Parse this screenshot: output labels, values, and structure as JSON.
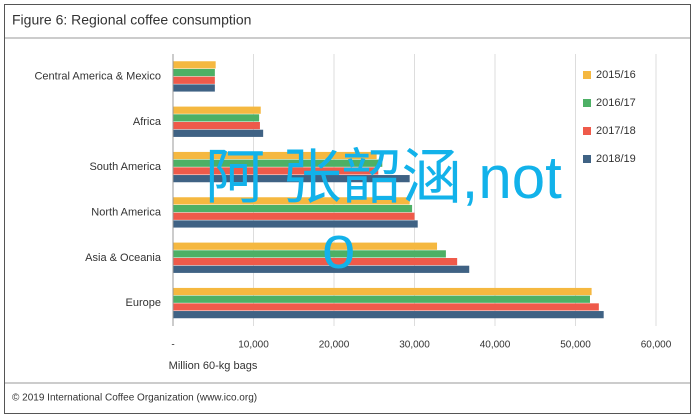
{
  "chart_data": {
    "type": "hbar",
    "title": "Figure 6: Regional coffee consumption",
    "categories": [
      "Central America & Mexico",
      "Africa",
      "South America",
      "North America",
      "Asia & Oceania",
      "Europe"
    ],
    "series": [
      {
        "name": "2015/16",
        "color": "#f5b840",
        "values": [
          5300,
          10900,
          25300,
          29400,
          32800,
          52000
        ]
      },
      {
        "name": "2016/17",
        "color": "#4db065",
        "values": [
          5200,
          10700,
          26000,
          29700,
          33900,
          51800
        ]
      },
      {
        "name": "2017/18",
        "color": "#ef5a4a",
        "values": [
          5200,
          10800,
          25500,
          30000,
          35300,
          52900
        ]
      },
      {
        "name": "2018/19",
        "color": "#3f6284",
        "values": [
          5200,
          11200,
          29400,
          30400,
          36800,
          53500
        ]
      }
    ],
    "xlim": [
      0,
      60000
    ],
    "xticks": [
      {
        "value": 0,
        "label": "-"
      },
      {
        "value": 10000,
        "label": "10,000"
      },
      {
        "value": 20000,
        "label": "20,000"
      },
      {
        "value": 30000,
        "label": "30,000"
      },
      {
        "value": 40000,
        "label": "40,000"
      },
      {
        "value": 50000,
        "label": "50,000"
      },
      {
        "value": 60000,
        "label": "60,000"
      }
    ],
    "xlabel": "Million 60-kg bags",
    "grid": true,
    "legend": "right",
    "source": "© 2019 International Coffee Organization (www.ico.org)",
    "annotations": [
      "阿 张韶涵,not",
      "o"
    ]
  }
}
